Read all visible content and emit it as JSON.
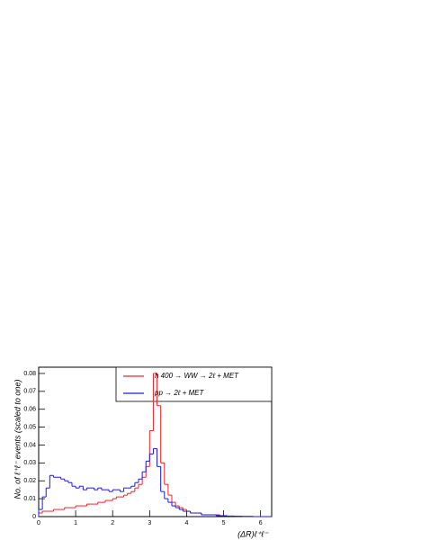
{
  "chart_data": {
    "type": "histogram",
    "x_label": "(ΔR)ℓ⁺ℓ⁻",
    "y_label": "No.  of  ℓ⁺ℓ⁻  events  (scaled  to  one)",
    "bins": [
      0,
      0.1,
      0.2,
      0.3,
      0.4,
      0.5,
      0.6,
      0.7,
      0.8,
      0.9,
      1,
      1.1,
      1.2,
      1.3,
      1.4,
      1.5,
      1.6,
      1.7,
      1.8,
      1.9,
      2,
      2.1,
      2.2,
      2.3,
      2.4,
      2.5,
      2.6,
      2.7,
      2.8,
      2.9,
      3,
      3.1,
      3.2,
      3.3,
      3.4,
      3.5,
      3.6,
      3.7,
      3.8,
      3.9,
      4,
      4.1,
      4.2,
      4.3,
      4.4,
      4.5,
      4.6,
      4.7,
      4.8,
      4.9,
      5,
      5.1,
      5.2,
      5.3,
      5.4,
      5.5,
      5.6,
      5.7,
      5.8,
      5.9,
      6,
      6.1,
      6.2,
      6.3
    ],
    "series": [
      {
        "name": "h 400 → WW → 2ℓ + MET",
        "color": "#e8262a",
        "values": [
          0.002,
          0.003,
          0.003,
          0.003,
          0.004,
          0.004,
          0.004,
          0.005,
          0.005,
          0.005,
          0.006,
          0.006,
          0.006,
          0.007,
          0.007,
          0.007,
          0.008,
          0.008,
          0.009,
          0.009,
          0.01,
          0.011,
          0.011,
          0.012,
          0.013,
          0.014,
          0.016,
          0.018,
          0.022,
          0.028,
          0.048,
          0.08,
          0.062,
          0.03,
          0.018,
          0.012,
          0.008,
          0.006,
          0.005,
          0.004,
          0.003,
          0.002,
          0.002,
          0.002,
          0.001,
          0.001,
          0.001,
          0.001,
          0.001,
          0.0005,
          0.0005,
          0.0003,
          0.0003,
          0.0002,
          0.0002,
          0.0001,
          0.0001,
          0.0001,
          0,
          0,
          0,
          0,
          0
        ]
      },
      {
        "name": "pp → 2ℓ + MET",
        "color": "#1a1ae6",
        "values": [
          0.004,
          0.011,
          0.016,
          0.023,
          0.022,
          0.022,
          0.021,
          0.02,
          0.019,
          0.017,
          0.016,
          0.017,
          0.015,
          0.016,
          0.016,
          0.015,
          0.016,
          0.015,
          0.015,
          0.014,
          0.015,
          0.015,
          0.014,
          0.016,
          0.016,
          0.017,
          0.019,
          0.021,
          0.025,
          0.031,
          0.035,
          0.038,
          0.028,
          0.014,
          0.01,
          0.008,
          0.006,
          0.005,
          0.004,
          0.003,
          0.003,
          0.002,
          0.002,
          0.002,
          0.001,
          0.001,
          0.001,
          0.001,
          0.0005,
          0.0005,
          0.0005,
          0.0003,
          0.0003,
          0.0002,
          0.0002,
          0.0001,
          0.0001,
          0.0001,
          0,
          0,
          0,
          0,
          0
        ]
      }
    ],
    "xlim": [
      0,
      6.3
    ],
    "ylim": [
      0,
      0.0835
    ],
    "xticks": [
      0,
      1,
      2,
      3,
      4,
      5,
      6
    ],
    "yticks": [
      0,
      0.01,
      0.02,
      0.03,
      0.04,
      0.05,
      0.06,
      0.07,
      0.08
    ],
    "legend": "top-right"
  }
}
